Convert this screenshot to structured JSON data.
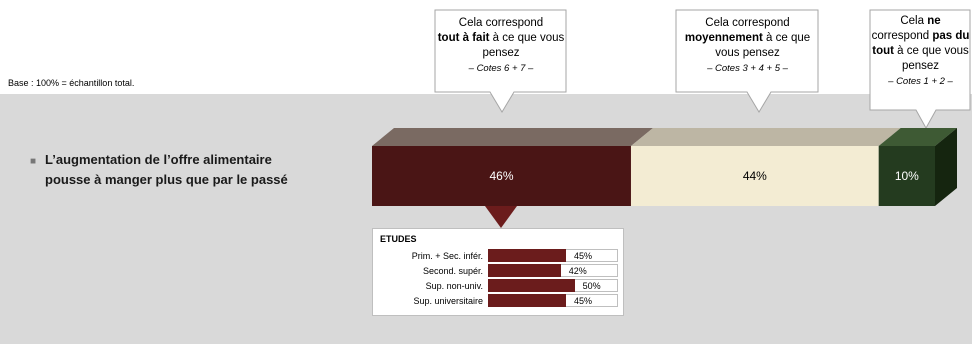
{
  "base_note": "Base : 100% = échantillon total.",
  "statement": "L’augmentation de l’offre alimentaire pousse à manger plus que par le passé",
  "callouts": [
    {
      "pre": "Cela correspond",
      "bold": "tout à fait",
      "post": " à ce que vous pensez",
      "sub": "– Cotes 6 + 7 –"
    },
    {
      "pre": "Cela correspond",
      "bold": "moyennement",
      "post": " à ce que vous pensez",
      "sub": "– Cotes 3 + 4 + 5 –"
    },
    {
      "pre": "Cela ",
      "bold": "ne",
      "mid": "correspond ",
      "bold2": "pas du tout",
      "post": " à ce que vous pensez",
      "sub": "– Cotes 1 + 2 –"
    }
  ],
  "colors": {
    "tout_a_fait": "#4a1515",
    "moyennement": "#f3ecd3",
    "pas_du_tout": "#243b1f",
    "etudes_bar": "#6b1c1c",
    "band": "#d9d9d9"
  },
  "chart_data": [
    {
      "type": "bar",
      "orientation": "horizontal-stacked",
      "categories": [
        "L’augmentation de l’offre alimentaire pousse à manger plus que par le passé"
      ],
      "series": [
        {
          "name": "Cela correspond tout à fait à ce que vous pensez – Cotes 6 + 7 –",
          "values": [
            46
          ],
          "label": "46%"
        },
        {
          "name": "Cela correspond moyennement à ce que vous pensez – Cotes 3 + 4 + 5 –",
          "values": [
            44
          ],
          "label": "44%"
        },
        {
          "name": "Cela ne correspond pas du tout à ce que vous pensez – Cotes 1 + 2 –",
          "values": [
            10
          ],
          "label": "10%"
        }
      ],
      "xlim": [
        0,
        100
      ]
    },
    {
      "type": "bar",
      "orientation": "horizontal",
      "title": "ETUDES",
      "categories": [
        "Prim. + Sec. infér.",
        "Second. supér.",
        "Sup. non-univ.",
        "Sup. universitaire"
      ],
      "values": [
        45,
        42,
        50,
        45
      ],
      "labels": [
        "45%",
        "42%",
        "50%",
        "45%"
      ],
      "xlim": [
        0,
        100
      ]
    }
  ]
}
